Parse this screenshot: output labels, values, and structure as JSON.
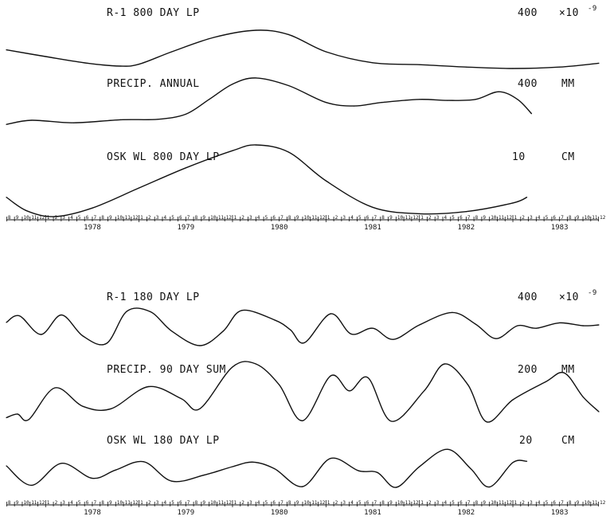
{
  "chart_data": [
    {
      "type": "line",
      "x_unit": "year",
      "xlim": [
        1977.58,
        1983.92
      ],
      "x_tick_labels": [
        "1978",
        "1979",
        "1980",
        "1981",
        "1982",
        "1983"
      ],
      "series": [
        {
          "name": "R-1 800 DAY LP",
          "scale_value": "400",
          "scale_unit": "×10",
          "scale_exponent": "-9",
          "y_range": [
            0,
            1
          ],
          "points": [
            [
              1977.58,
              0.59
            ],
            [
              1978.0,
              0.45
            ],
            [
              1978.45,
              0.31
            ],
            [
              1978.8,
              0.25
            ],
            [
              1979.0,
              0.29
            ],
            [
              1979.35,
              0.55
            ],
            [
              1979.8,
              0.85
            ],
            [
              1980.25,
              1.0
            ],
            [
              1980.6,
              0.91
            ],
            [
              1981.0,
              0.55
            ],
            [
              1981.5,
              0.32
            ],
            [
              1982.0,
              0.28
            ],
            [
              1982.5,
              0.23
            ],
            [
              1983.0,
              0.2
            ],
            [
              1983.5,
              0.23
            ],
            [
              1983.92,
              0.31
            ]
          ]
        },
        {
          "name": "PRECIP. ANNUAL",
          "scale_value": "400",
          "scale_unit": "MM",
          "y_range": [
            0,
            1
          ],
          "points": [
            [
              1977.58,
              0.06
            ],
            [
              1977.85,
              0.14
            ],
            [
              1978.3,
              0.09
            ],
            [
              1978.8,
              0.15
            ],
            [
              1979.2,
              0.16
            ],
            [
              1979.5,
              0.26
            ],
            [
              1979.75,
              0.55
            ],
            [
              1980.0,
              0.85
            ],
            [
              1980.25,
              0.97
            ],
            [
              1980.6,
              0.82
            ],
            [
              1981.0,
              0.49
            ],
            [
              1981.3,
              0.42
            ],
            [
              1981.6,
              0.49
            ],
            [
              1982.0,
              0.55
            ],
            [
              1982.3,
              0.53
            ],
            [
              1982.6,
              0.55
            ],
            [
              1982.85,
              0.7
            ],
            [
              1983.05,
              0.55
            ],
            [
              1983.2,
              0.27
            ]
          ]
        },
        {
          "name": "OSK WL 800 DAY LP",
          "scale_value": "10",
          "scale_unit": "CM",
          "y_range": [
            0,
            1
          ],
          "points": [
            [
              1977.58,
              0.27
            ],
            [
              1977.8,
              0.08
            ],
            [
              1978.1,
              0.0
            ],
            [
              1978.5,
              0.12
            ],
            [
              1979.0,
              0.4
            ],
            [
              1979.5,
              0.68
            ],
            [
              1980.0,
              0.92
            ],
            [
              1980.25,
              1.0
            ],
            [
              1980.6,
              0.9
            ],
            [
              1981.0,
              0.5
            ],
            [
              1981.5,
              0.13
            ],
            [
              1982.0,
              0.04
            ],
            [
              1982.5,
              0.07
            ],
            [
              1983.0,
              0.19
            ],
            [
              1983.15,
              0.27
            ]
          ]
        }
      ]
    },
    {
      "type": "line",
      "x_unit": "year",
      "xlim": [
        1977.58,
        1983.92
      ],
      "x_tick_labels": [
        "1978",
        "1979",
        "1980",
        "1981",
        "1982",
        "1983"
      ],
      "series": [
        {
          "name": "R-1 180 DAY LP",
          "scale_value": "400",
          "scale_unit": "×10",
          "scale_exponent": "-9",
          "y_range": [
            0,
            1
          ],
          "points": [
            [
              1977.58,
              0.56
            ],
            [
              1977.72,
              0.72
            ],
            [
              1977.95,
              0.27
            ],
            [
              1978.17,
              0.74
            ],
            [
              1978.4,
              0.23
            ],
            [
              1978.65,
              0.05
            ],
            [
              1978.87,
              0.83
            ],
            [
              1979.12,
              0.82
            ],
            [
              1979.35,
              0.35
            ],
            [
              1979.65,
              0.0
            ],
            [
              1979.9,
              0.35
            ],
            [
              1980.1,
              0.85
            ],
            [
              1980.45,
              0.62
            ],
            [
              1980.62,
              0.38
            ],
            [
              1980.77,
              0.07
            ],
            [
              1981.05,
              0.77
            ],
            [
              1981.27,
              0.28
            ],
            [
              1981.5,
              0.42
            ],
            [
              1981.72,
              0.15
            ],
            [
              1982.0,
              0.5
            ],
            [
              1982.35,
              0.8
            ],
            [
              1982.6,
              0.52
            ],
            [
              1982.82,
              0.17
            ],
            [
              1983.05,
              0.48
            ],
            [
              1983.25,
              0.42
            ],
            [
              1983.5,
              0.55
            ],
            [
              1983.75,
              0.48
            ],
            [
              1983.92,
              0.5
            ]
          ]
        },
        {
          "name": "PRECIP. 90 DAY SUM",
          "scale_value": "200",
          "scale_unit": "MM",
          "y_range": [
            0,
            1
          ],
          "points": [
            [
              1977.58,
              0.1
            ],
            [
              1977.7,
              0.16
            ],
            [
              1977.82,
              0.07
            ],
            [
              1978.1,
              0.6
            ],
            [
              1978.4,
              0.29
            ],
            [
              1978.7,
              0.25
            ],
            [
              1979.1,
              0.62
            ],
            [
              1979.45,
              0.42
            ],
            [
              1979.65,
              0.25
            ],
            [
              1980.0,
              0.95
            ],
            [
              1980.25,
              1.0
            ],
            [
              1980.5,
              0.65
            ],
            [
              1980.75,
              0.05
            ],
            [
              1981.05,
              0.8
            ],
            [
              1981.25,
              0.55
            ],
            [
              1981.45,
              0.77
            ],
            [
              1981.7,
              0.04
            ],
            [
              1982.05,
              0.55
            ],
            [
              1982.27,
              1.0
            ],
            [
              1982.52,
              0.65
            ],
            [
              1982.72,
              0.03
            ],
            [
              1983.0,
              0.4
            ],
            [
              1983.35,
              0.7
            ],
            [
              1983.55,
              0.85
            ],
            [
              1983.75,
              0.45
            ],
            [
              1983.92,
              0.2
            ]
          ]
        },
        {
          "name": "OSK WL 180 DAY LP",
          "scale_value": "20",
          "scale_unit": "CM",
          "y_range": [
            0,
            1
          ],
          "points": [
            [
              1977.58,
              0.52
            ],
            [
              1977.85,
              0.05
            ],
            [
              1978.17,
              0.58
            ],
            [
              1978.5,
              0.22
            ],
            [
              1978.75,
              0.42
            ],
            [
              1979.05,
              0.62
            ],
            [
              1979.35,
              0.15
            ],
            [
              1979.7,
              0.3
            ],
            [
              1980.0,
              0.5
            ],
            [
              1980.22,
              0.61
            ],
            [
              1980.45,
              0.45
            ],
            [
              1980.75,
              0.02
            ],
            [
              1981.05,
              0.7
            ],
            [
              1981.35,
              0.4
            ],
            [
              1981.55,
              0.36
            ],
            [
              1981.75,
              0.0
            ],
            [
              1982.0,
              0.5
            ],
            [
              1982.3,
              0.92
            ],
            [
              1982.55,
              0.45
            ],
            [
              1982.75,
              0.01
            ],
            [
              1983.0,
              0.6
            ],
            [
              1983.15,
              0.63
            ]
          ]
        }
      ]
    }
  ]
}
